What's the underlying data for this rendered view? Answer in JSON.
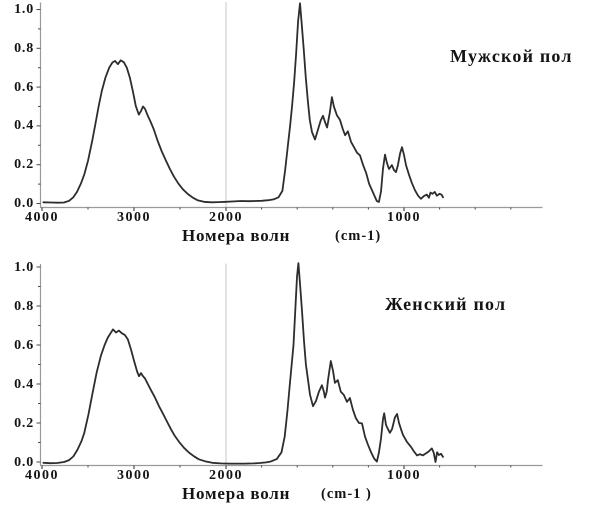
{
  "figure": {
    "background": "#ffffff",
    "text_color": "#141414",
    "curve_color": "#2d2d2d",
    "axis_color": "#9a9a9a",
    "tick_color": "#4a4a4a",
    "grid_color": "#c9c9c9"
  },
  "chart_data": [
    {
      "type": "line",
      "title": "Мужской пол",
      "xlabel": "Номера волн",
      "xunit": "(cm-1)",
      "x_axis": {
        "min": 4000,
        "max": 780,
        "reversed": true,
        "scale_break_at": 2000,
        "ticks": [
          {
            "v": 4000,
            "label": "4000"
          },
          {
            "v": 3000,
            "label": "3000"
          },
          {
            "v": 2000,
            "label": "2000"
          },
          {
            "v": 1000,
            "label": "1000"
          }
        ],
        "minor_ticks": [
          3500,
          2500,
          1800,
          1600,
          1400,
          1200,
          800,
          600,
          400
        ]
      },
      "y_axis": {
        "min": 0,
        "max": 1,
        "ticks": [
          {
            "v": 1.0,
            "label": "1.0"
          },
          {
            "v": 0.8,
            "label": "0.8"
          },
          {
            "v": 0.6,
            "label": "0.6"
          },
          {
            "v": 0.4,
            "label": "0.4"
          },
          {
            "v": 0.2,
            "label": "0.2"
          },
          {
            "v": 0.0,
            "label": "0.0"
          }
        ]
      },
      "gridline_at_x": 2000,
      "series": [
        {
          "points": [
            [
              3985,
              0.006
            ],
            [
              3900,
              0.005
            ],
            [
              3830,
              0.004
            ],
            [
              3760,
              0.005
            ],
            [
              3705,
              0.014
            ],
            [
              3660,
              0.032
            ],
            [
              3620,
              0.06
            ],
            [
              3575,
              0.105
            ],
            [
              3540,
              0.15
            ],
            [
              3500,
              0.22
            ],
            [
              3455,
              0.32
            ],
            [
              3420,
              0.41
            ],
            [
              3385,
              0.5
            ],
            [
              3350,
              0.58
            ],
            [
              3310,
              0.65
            ],
            [
              3270,
              0.7
            ],
            [
              3235,
              0.727
            ],
            [
              3205,
              0.735
            ],
            [
              3175,
              0.718
            ],
            [
              3145,
              0.738
            ],
            [
              3110,
              0.728
            ],
            [
              3078,
              0.7
            ],
            [
              3045,
              0.648
            ],
            [
              3012,
              0.578
            ],
            [
              2980,
              0.502
            ],
            [
              2948,
              0.458
            ],
            [
              2925,
              0.476
            ],
            [
              2902,
              0.5
            ],
            [
              2880,
              0.488
            ],
            [
              2850,
              0.452
            ],
            [
              2818,
              0.42
            ],
            [
              2785,
              0.382
            ],
            [
              2742,
              0.322
            ],
            [
              2698,
              0.268
            ],
            [
              2652,
              0.22
            ],
            [
              2610,
              0.178
            ],
            [
              2565,
              0.138
            ],
            [
              2520,
              0.104
            ],
            [
              2468,
              0.073
            ],
            [
              2415,
              0.049
            ],
            [
              2360,
              0.03
            ],
            [
              2305,
              0.016
            ],
            [
              2240,
              0.009
            ],
            [
              2160,
              0.006
            ],
            [
              2080,
              0.007
            ],
            [
              2000,
              0.009
            ],
            [
              1955,
              0.011
            ],
            [
              1915,
              0.013
            ],
            [
              1870,
              0.012
            ],
            [
              1835,
              0.013
            ],
            [
              1800,
              0.014
            ],
            [
              1762,
              0.017
            ],
            [
              1730,
              0.022
            ],
            [
              1705,
              0.032
            ],
            [
              1683,
              0.065
            ],
            [
              1668,
              0.17
            ],
            [
              1652,
              0.3
            ],
            [
              1640,
              0.4
            ],
            [
              1628,
              0.51
            ],
            [
              1617,
              0.63
            ],
            [
              1606,
              0.77
            ],
            [
              1595,
              0.94
            ],
            [
              1584,
              1.032
            ],
            [
              1574,
              0.92
            ],
            [
              1563,
              0.79
            ],
            [
              1552,
              0.655
            ],
            [
              1540,
              0.525
            ],
            [
              1529,
              0.43
            ],
            [
              1517,
              0.368
            ],
            [
              1500,
              0.33
            ],
            [
              1484,
              0.378
            ],
            [
              1468,
              0.428
            ],
            [
              1455,
              0.452
            ],
            [
              1444,
              0.42
            ],
            [
              1432,
              0.392
            ],
            [
              1417,
              0.468
            ],
            [
              1405,
              0.548
            ],
            [
              1393,
              0.498
            ],
            [
              1377,
              0.455
            ],
            [
              1360,
              0.432
            ],
            [
              1343,
              0.382
            ],
            [
              1331,
              0.352
            ],
            [
              1315,
              0.372
            ],
            [
              1298,
              0.318
            ],
            [
              1281,
              0.29
            ],
            [
              1264,
              0.262
            ],
            [
              1247,
              0.248
            ],
            [
              1230,
              0.198
            ],
            [
              1213,
              0.158
            ],
            [
              1196,
              0.102
            ],
            [
              1184,
              0.078
            ],
            [
              1168,
              0.044
            ],
            [
              1152,
              0.012
            ],
            [
              1141,
              0.008
            ],
            [
              1129,
              0.062
            ],
            [
              1118,
              0.18
            ],
            [
              1107,
              0.252
            ],
            [
              1096,
              0.21
            ],
            [
              1084,
              0.178
            ],
            [
              1068,
              0.198
            ],
            [
              1056,
              0.172
            ],
            [
              1045,
              0.162
            ],
            [
              1034,
              0.198
            ],
            [
              1022,
              0.258
            ],
            [
              1011,
              0.29
            ],
            [
              1000,
              0.25
            ],
            [
              989,
              0.198
            ],
            [
              972,
              0.148
            ],
            [
              955,
              0.104
            ],
            [
              938,
              0.068
            ],
            [
              921,
              0.04
            ],
            [
              905,
              0.024
            ],
            [
              888,
              0.038
            ],
            [
              872,
              0.046
            ],
            [
              860,
              0.03
            ],
            [
              851,
              0.056
            ],
            [
              840,
              0.05
            ],
            [
              827,
              0.06
            ],
            [
              816,
              0.04
            ],
            [
              800,
              0.05
            ],
            [
              788,
              0.045
            ],
            [
              781,
              0.032
            ]
          ]
        }
      ]
    },
    {
      "type": "line",
      "title": "Женский пол",
      "xlabel": "Номера волн",
      "xunit": "(cm-1 )",
      "x_axis": {
        "min": 4000,
        "max": 780,
        "reversed": true,
        "scale_break_at": 2000,
        "ticks": [
          {
            "v": 4000,
            "label": "4000"
          },
          {
            "v": 3000,
            "label": "3000"
          },
          {
            "v": 2000,
            "label": "2000"
          },
          {
            "v": 1000,
            "label": "1000"
          }
        ],
        "minor_ticks": [
          3500,
          2500,
          1800,
          1600,
          1400,
          1200,
          800,
          600,
          400
        ]
      },
      "y_axis": {
        "min": 0,
        "max": 1,
        "ticks": [
          {
            "v": 1.0,
            "label": "1.0"
          },
          {
            "v": 0.8,
            "label": "0.8"
          },
          {
            "v": 0.6,
            "label": "0.6"
          },
          {
            "v": 0.4,
            "label": "0.4"
          },
          {
            "v": 0.2,
            "label": "0.2"
          },
          {
            "v": 0.0,
            "label": "0.0"
          }
        ]
      },
      "gridline_at_x": 2000,
      "series": [
        {
          "points": [
            [
              3985,
              -0.004
            ],
            [
              3905,
              -0.006
            ],
            [
              3835,
              -0.005
            ],
            [
              3760,
              0
            ],
            [
              3705,
              0.01
            ],
            [
              3660,
              0.028
            ],
            [
              3615,
              0.062
            ],
            [
              3570,
              0.108
            ],
            [
              3540,
              0.15
            ],
            [
              3495,
              0.245
            ],
            [
              3450,
              0.355
            ],
            [
              3405,
              0.46
            ],
            [
              3360,
              0.545
            ],
            [
              3320,
              0.6
            ],
            [
              3285,
              0.638
            ],
            [
              3255,
              0.66
            ],
            [
              3228,
              0.68
            ],
            [
              3196,
              0.664
            ],
            [
              3164,
              0.674
            ],
            [
              3132,
              0.66
            ],
            [
              3100,
              0.652
            ],
            [
              3066,
              0.628
            ],
            [
              3032,
              0.575
            ],
            [
              3000,
              0.52
            ],
            [
              2966,
              0.464
            ],
            [
              2946,
              0.44
            ],
            [
              2924,
              0.456
            ],
            [
              2902,
              0.44
            ],
            [
              2880,
              0.428
            ],
            [
              2850,
              0.4
            ],
            [
              2815,
              0.368
            ],
            [
              2772,
              0.33
            ],
            [
              2730,
              0.288
            ],
            [
              2686,
              0.248
            ],
            [
              2642,
              0.208
            ],
            [
              2600,
              0.17
            ],
            [
              2556,
              0.134
            ],
            [
              2510,
              0.103
            ],
            [
              2456,
              0.073
            ],
            [
              2402,
              0.048
            ],
            [
              2348,
              0.029
            ],
            [
              2295,
              0.014
            ],
            [
              2230,
              0.004
            ],
            [
              2150,
              -0.004
            ],
            [
              2060,
              -0.007
            ],
            [
              1980,
              -0.008
            ],
            [
              1900,
              -0.008
            ],
            [
              1845,
              -0.007
            ],
            [
              1810,
              -0.005
            ],
            [
              1775,
              -0.002
            ],
            [
              1750,
              0.002
            ],
            [
              1715,
              0.015
            ],
            [
              1688,
              0.05
            ],
            [
              1670,
              0.13
            ],
            [
              1655,
              0.26
            ],
            [
              1643,
              0.38
            ],
            [
              1632,
              0.49
            ],
            [
              1621,
              0.6
            ],
            [
              1611,
              0.77
            ],
            [
              1601,
              0.95
            ],
            [
              1593,
              1.02
            ],
            [
              1584,
              0.915
            ],
            [
              1573,
              0.775
            ],
            [
              1562,
              0.62
            ],
            [
              1551,
              0.5
            ],
            [
              1539,
              0.418
            ],
            [
              1528,
              0.345
            ],
            [
              1511,
              0.286
            ],
            [
              1495,
              0.312
            ],
            [
              1478,
              0.36
            ],
            [
              1461,
              0.394
            ],
            [
              1450,
              0.36
            ],
            [
              1444,
              0.33
            ],
            [
              1434,
              0.36
            ],
            [
              1427,
              0.42
            ],
            [
              1411,
              0.518
            ],
            [
              1399,
              0.468
            ],
            [
              1388,
              0.406
            ],
            [
              1372,
              0.42
            ],
            [
              1355,
              0.36
            ],
            [
              1338,
              0.344
            ],
            [
              1320,
              0.308
            ],
            [
              1304,
              0.328
            ],
            [
              1287,
              0.268
            ],
            [
              1270,
              0.224
            ],
            [
              1253,
              0.2
            ],
            [
              1236,
              0.198
            ],
            [
              1219,
              0.13
            ],
            [
              1202,
              0.088
            ],
            [
              1185,
              0.05
            ],
            [
              1168,
              0.018
            ],
            [
              1152,
              0.002
            ],
            [
              1141,
              0.048
            ],
            [
              1129,
              0.12
            ],
            [
              1118,
              0.22
            ],
            [
              1111,
              0.25
            ],
            [
              1101,
              0.19
            ],
            [
              1090,
              0.168
            ],
            [
              1079,
              0.15
            ],
            [
              1067,
              0.17
            ],
            [
              1051,
              0.228
            ],
            [
              1039,
              0.246
            ],
            [
              1028,
              0.2
            ],
            [
              1017,
              0.168
            ],
            [
              1006,
              0.14
            ],
            [
              984,
              0.104
            ],
            [
              961,
              0.078
            ],
            [
              944,
              0.054
            ],
            [
              927,
              0.034
            ],
            [
              910,
              0.04
            ],
            [
              894,
              0.034
            ],
            [
              877,
              0.044
            ],
            [
              861,
              0.054
            ],
            [
              844,
              0.07
            ],
            [
              833,
              0.048
            ],
            [
              823,
              0
            ],
            [
              814,
              0.05
            ],
            [
              804,
              0.036
            ],
            [
              792,
              0.042
            ],
            [
              781,
              0.026
            ]
          ]
        }
      ]
    }
  ]
}
